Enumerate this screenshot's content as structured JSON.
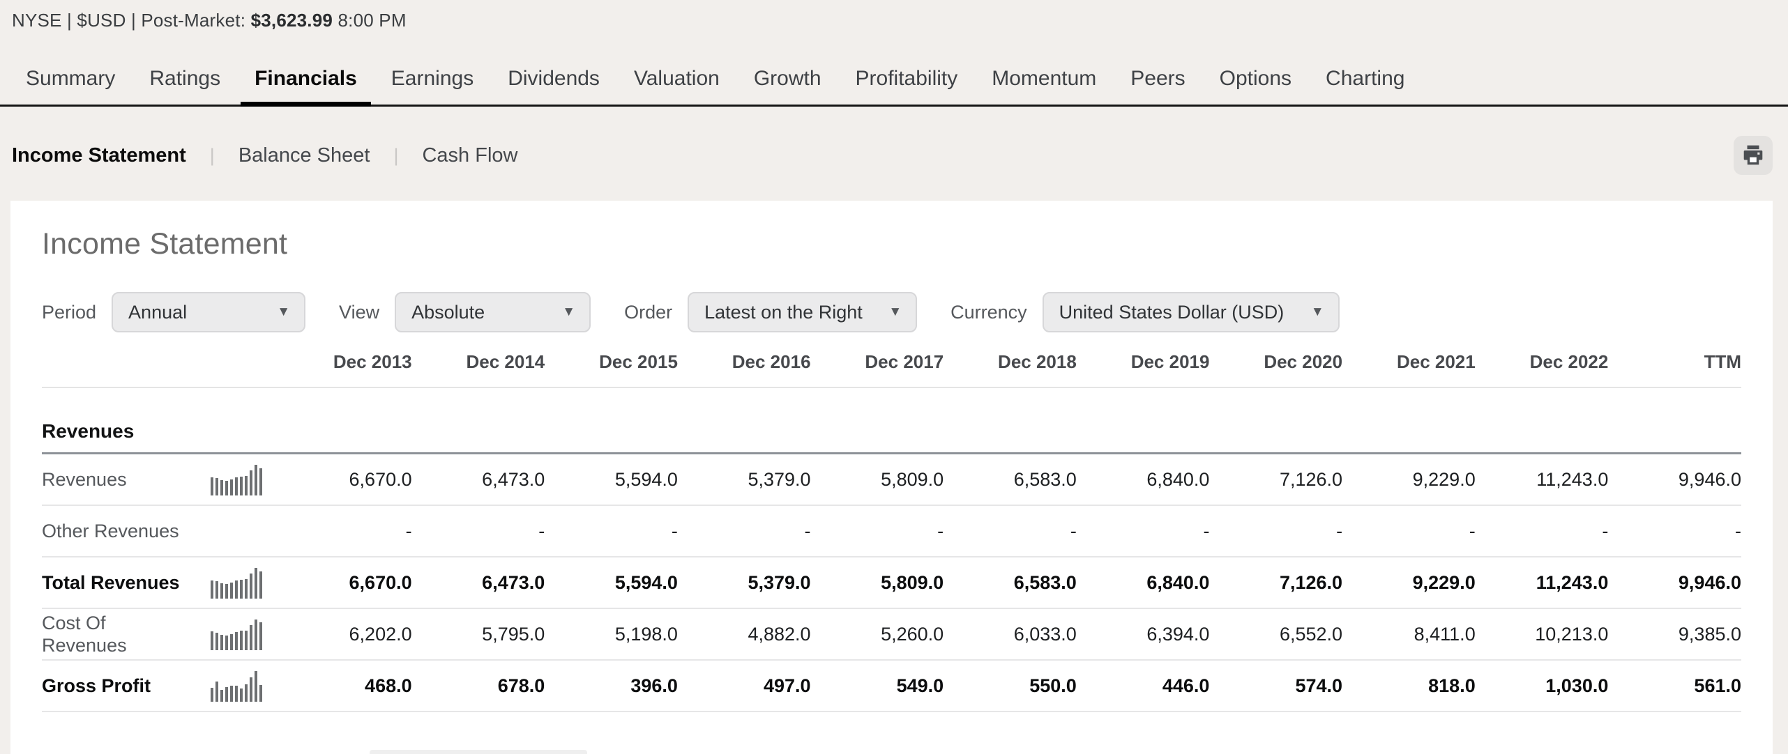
{
  "topbar": {
    "exchange_info": "NYSE | $USD | Post-Market:",
    "price": "$3,623.99",
    "time": "8:00 PM"
  },
  "tabs": {
    "active": "Financials",
    "items": [
      "Summary",
      "Ratings",
      "Financials",
      "Earnings",
      "Dividends",
      "Valuation",
      "Growth",
      "Profitability",
      "Momentum",
      "Peers",
      "Options",
      "Charting"
    ]
  },
  "subnav": {
    "active": "Income Statement",
    "separator": "|",
    "items": [
      "Income Statement",
      "Balance Sheet",
      "Cash Flow"
    ]
  },
  "page": {
    "title": "Income Statement"
  },
  "filters": [
    {
      "label": "Period",
      "value": "Annual"
    },
    {
      "label": "View",
      "value": "Absolute"
    },
    {
      "label": "Order",
      "value": "Latest on the Right"
    },
    {
      "label": "Currency",
      "value": "United States Dollar (USD)"
    }
  ],
  "icons": {
    "dropdown_arrow": "▼",
    "print": "printer-icon"
  },
  "colors": {
    "background": "#f2efec",
    "card": "#ffffff",
    "active_underline": "#000000",
    "section_border": "#8d9298",
    "row_border": "#e6e6e7",
    "sparkline_bar": "#6d6f71",
    "dropdown_bg": "#ebebec"
  },
  "table": {
    "columns": [
      "Dec 2013",
      "Dec 2014",
      "Dec 2015",
      "Dec 2016",
      "Dec 2017",
      "Dec 2018",
      "Dec 2019",
      "Dec 2020",
      "Dec 2021",
      "Dec 2022",
      "TTM"
    ],
    "rows": [
      {
        "type": "section",
        "label": "Revenues"
      },
      {
        "type": "data",
        "label": "Revenues",
        "bold": false,
        "sparkline": true,
        "values": [
          "6,670.0",
          "6,473.0",
          "5,594.0",
          "5,379.0",
          "5,809.0",
          "6,583.0",
          "6,840.0",
          "7,126.0",
          "9,229.0",
          "11,243.0",
          "9,946.0"
        ]
      },
      {
        "type": "data",
        "label": "Other Revenues",
        "bold": false,
        "sparkline": false,
        "values": [
          "-",
          "-",
          "-",
          "-",
          "-",
          "-",
          "-",
          "-",
          "-",
          "-",
          "-"
        ]
      },
      {
        "type": "data",
        "label": "Total Revenues",
        "bold": true,
        "sparkline": true,
        "values": [
          "6,670.0",
          "6,473.0",
          "5,594.0",
          "5,379.0",
          "5,809.0",
          "6,583.0",
          "6,840.0",
          "7,126.0",
          "9,229.0",
          "11,243.0",
          "9,946.0"
        ]
      },
      {
        "type": "data",
        "label": "Cost Of Revenues",
        "bold": false,
        "sparkline": true,
        "values": [
          "6,202.0",
          "5,795.0",
          "5,198.0",
          "4,882.0",
          "5,260.0",
          "6,033.0",
          "6,394.0",
          "6,552.0",
          "8,411.0",
          "10,213.0",
          "9,385.0"
        ]
      },
      {
        "type": "data",
        "label": "Gross Profit",
        "bold": true,
        "sparkline": true,
        "values": [
          "468.0",
          "678.0",
          "396.0",
          "497.0",
          "549.0",
          "550.0",
          "446.0",
          "574.0",
          "818.0",
          "1,030.0",
          "561.0"
        ]
      }
    ]
  }
}
